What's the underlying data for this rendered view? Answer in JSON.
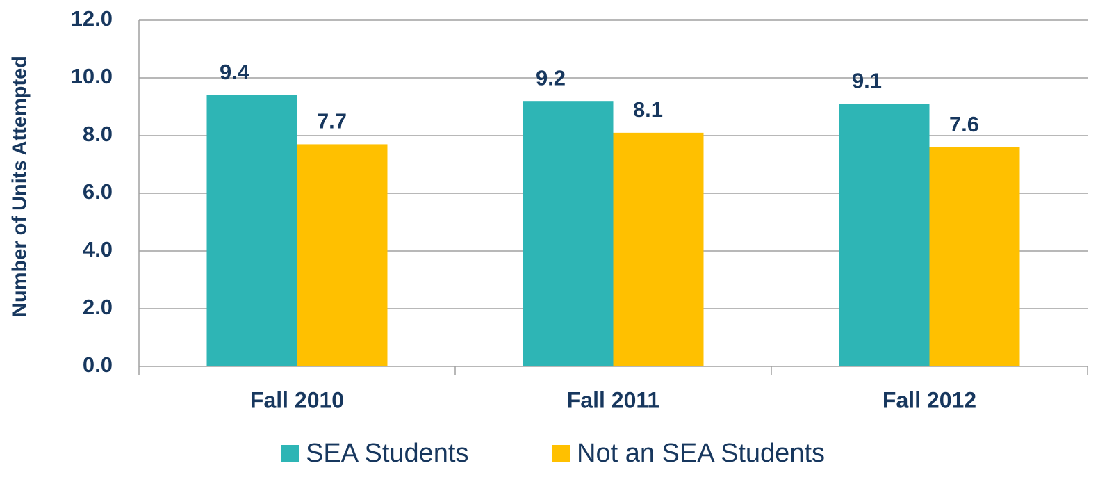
{
  "chart_data": {
    "type": "bar",
    "y_label": "Number of Units Attempted",
    "categories": [
      "Fall 2010",
      "Fall 2011",
      "Fall 2012"
    ],
    "series": [
      {
        "name": "SEA Students",
        "color": "#2eb5b5",
        "values": [
          9.4,
          9.2,
          9.1
        ]
      },
      {
        "name": "Not an SEA Students",
        "color": "#ffc000",
        "values": [
          7.7,
          8.1,
          7.6
        ]
      }
    ],
    "ylim": [
      0,
      12
    ],
    "yticks": [
      {
        "value": 0,
        "label": "0.0"
      },
      {
        "value": 2,
        "label": "2.0"
      },
      {
        "value": 4,
        "label": "4.0"
      },
      {
        "value": 6,
        "label": "6.0"
      },
      {
        "value": 8,
        "label": "8.0"
      },
      {
        "value": 10,
        "label": "10.0"
      },
      {
        "value": 12,
        "label": "12.0"
      }
    ],
    "grid": true
  }
}
